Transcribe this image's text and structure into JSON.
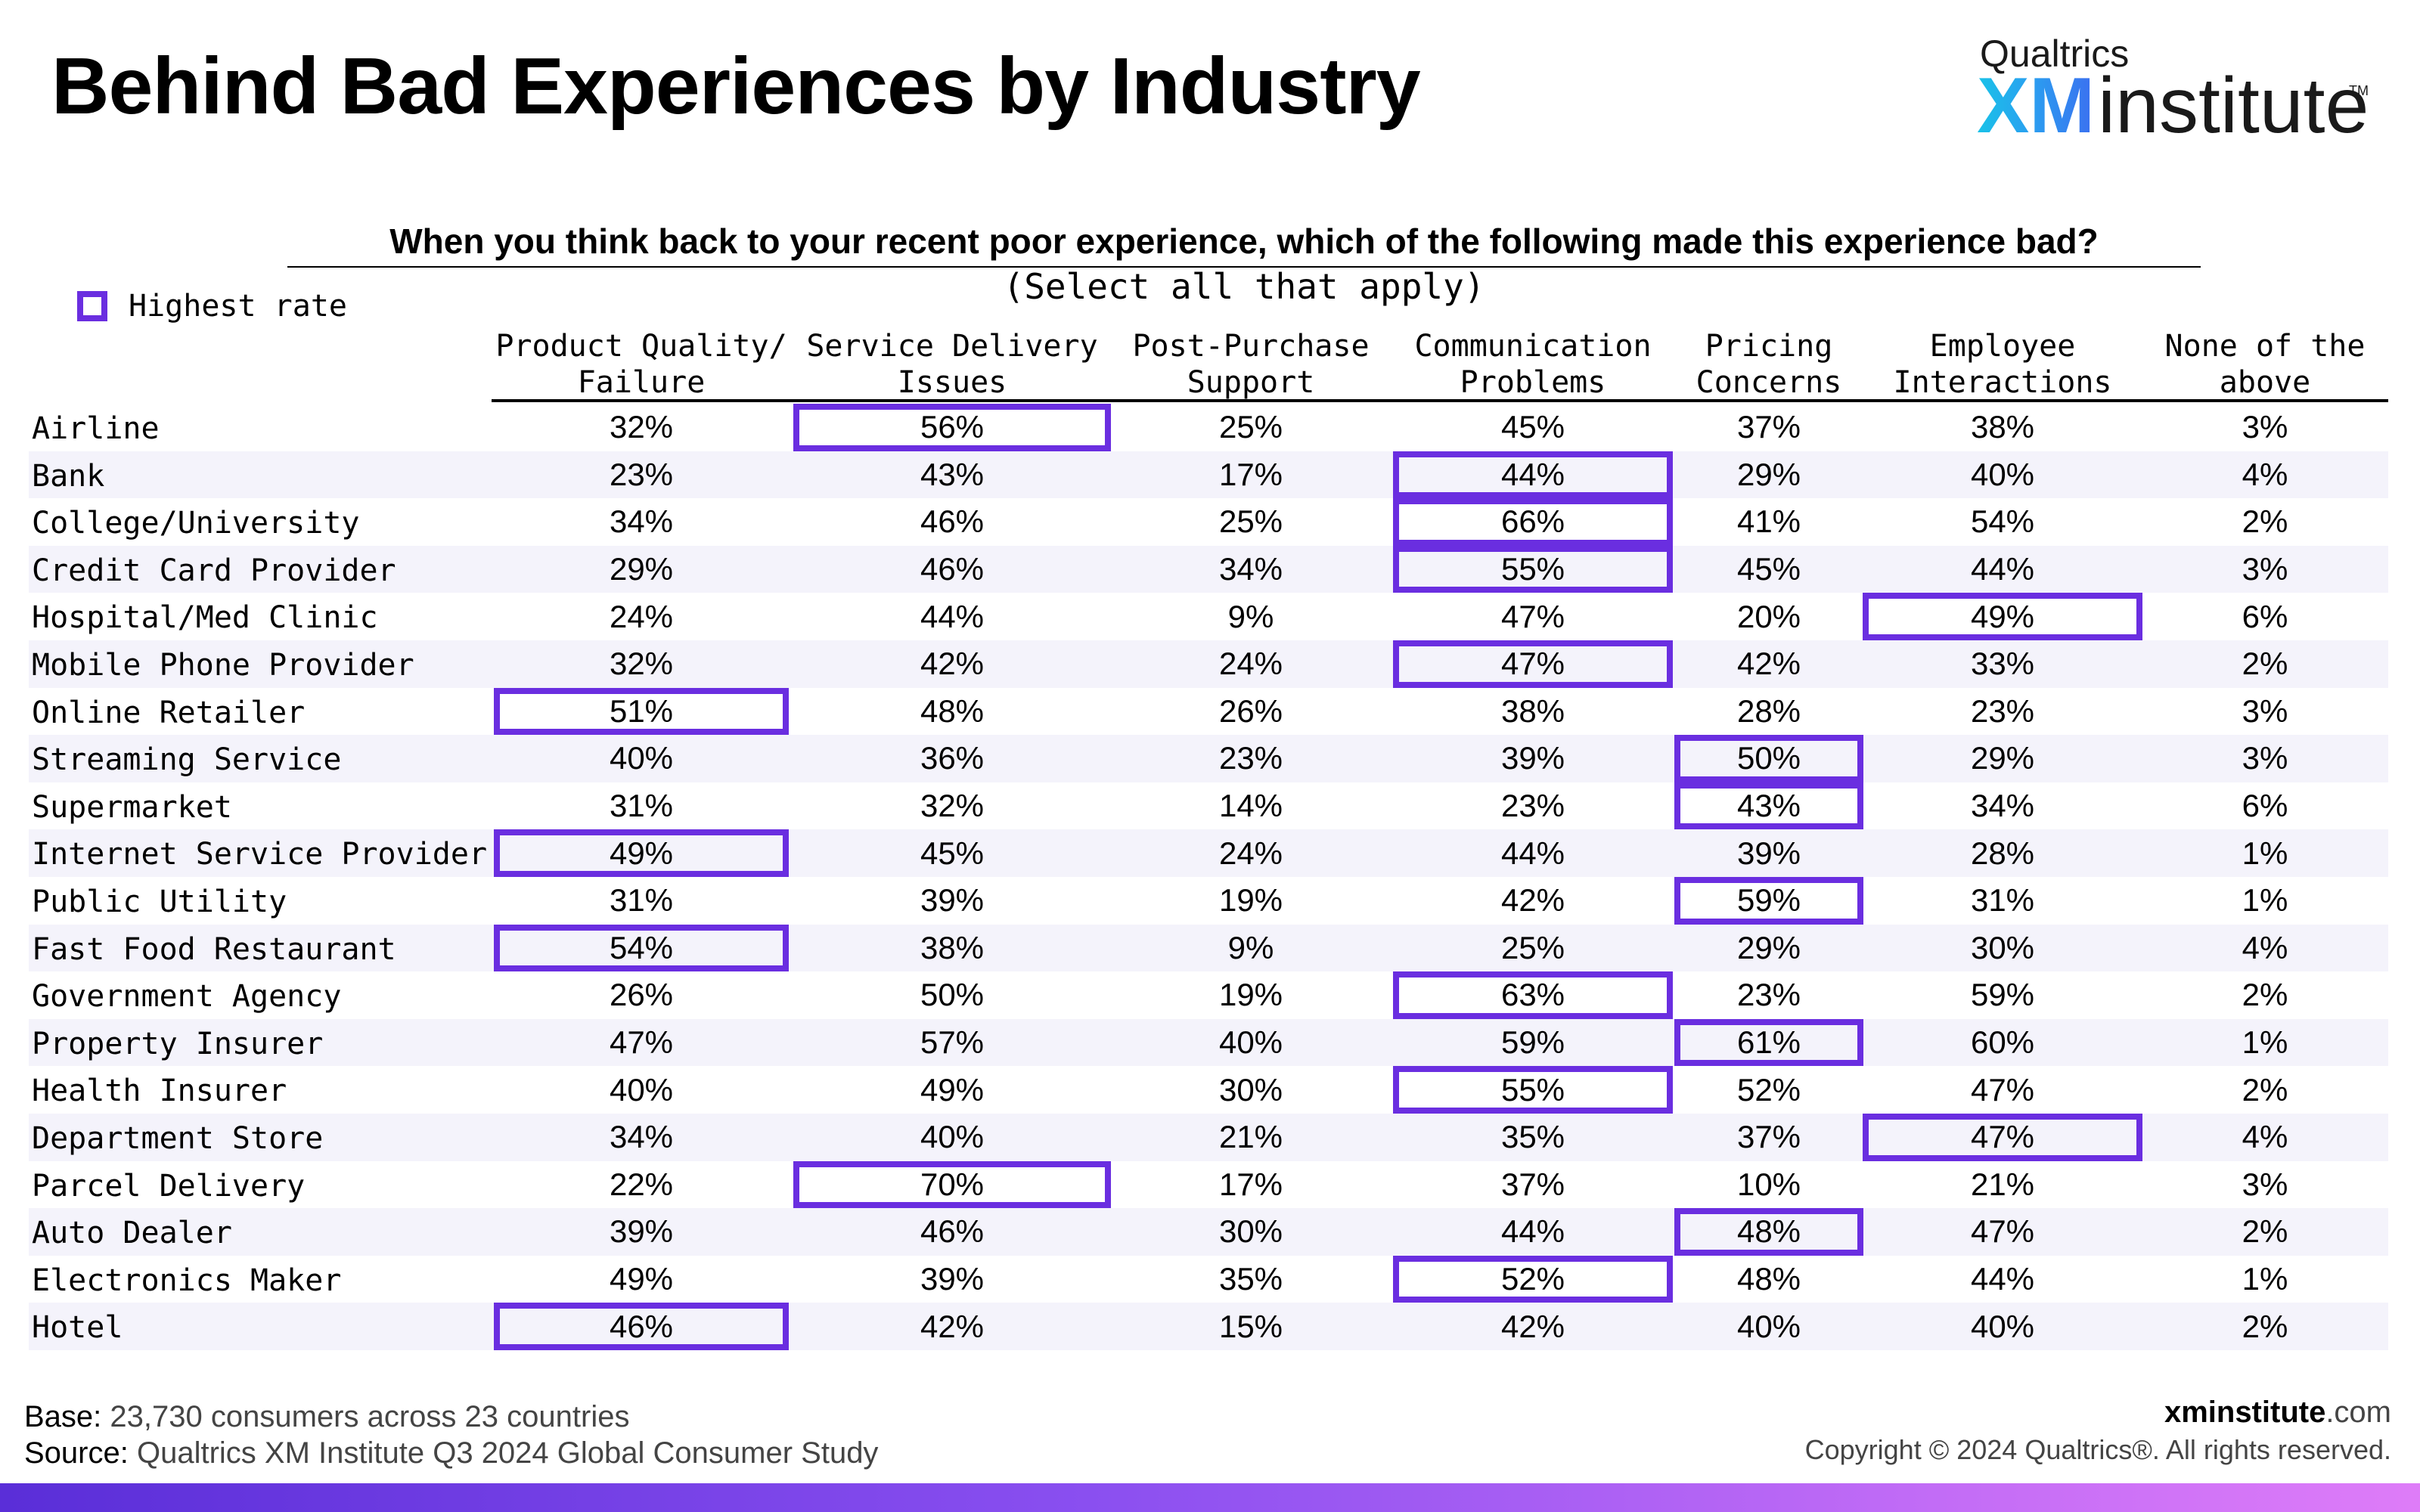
{
  "header": {
    "title": "Behind Bad Experiences by Industry",
    "logo": {
      "top": "Qualtrics",
      "xm": "XM",
      "institute": "institute",
      "tm": "TM"
    }
  },
  "question": "When you think back to your recent poor experience, which of the following made this experience bad?",
  "instruction": "(Select all that apply)",
  "legend": {
    "label": "Highest rate",
    "color": "#6a2ee0"
  },
  "colors": {
    "highlight": "#6a2ee0",
    "row_shade": "#f4f3fb"
  },
  "chart_data": {
    "type": "table",
    "title": "Behind Bad Experiences by Industry",
    "columns": [
      {
        "line1": "Product Quality/",
        "line2": "Failure"
      },
      {
        "line1": "Service Delivery",
        "line2": "Issues"
      },
      {
        "line1": "Post-Purchase",
        "line2": "Support"
      },
      {
        "line1": "Communication",
        "line2": "Problems"
      },
      {
        "line1": "Pricing",
        "line2": "Concerns"
      },
      {
        "line1": "Employee",
        "line2": "Interactions"
      },
      {
        "line1": "None of the",
        "line2": "above"
      }
    ],
    "rows": [
      {
        "label": "Airline",
        "values": [
          "32%",
          "56%",
          "25%",
          "45%",
          "37%",
          "38%",
          "3%"
        ],
        "highest": [
          1
        ]
      },
      {
        "label": "Bank",
        "values": [
          "23%",
          "43%",
          "17%",
          "44%",
          "29%",
          "40%",
          "4%"
        ],
        "highest": [
          3
        ]
      },
      {
        "label": "College/University",
        "values": [
          "34%",
          "46%",
          "25%",
          "66%",
          "41%",
          "54%",
          "2%"
        ],
        "highest": [
          3
        ]
      },
      {
        "label": "Credit Card Provider",
        "values": [
          "29%",
          "46%",
          "34%",
          "55%",
          "45%",
          "44%",
          "3%"
        ],
        "highest": [
          3
        ]
      },
      {
        "label": "Hospital/Med Clinic",
        "values": [
          "24%",
          "44%",
          "9%",
          "47%",
          "20%",
          "49%",
          "6%"
        ],
        "highest": [
          5
        ]
      },
      {
        "label": "Mobile Phone Provider",
        "values": [
          "32%",
          "42%",
          "24%",
          "47%",
          "42%",
          "33%",
          "2%"
        ],
        "highest": [
          3
        ]
      },
      {
        "label": "Online Retailer",
        "values": [
          "51%",
          "48%",
          "26%",
          "38%",
          "28%",
          "23%",
          "3%"
        ],
        "highest": [
          0
        ]
      },
      {
        "label": "Streaming Service",
        "values": [
          "40%",
          "36%",
          "23%",
          "39%",
          "50%",
          "29%",
          "3%"
        ],
        "highest": [
          4
        ]
      },
      {
        "label": "Supermarket",
        "values": [
          "31%",
          "32%",
          "14%",
          "23%",
          "43%",
          "34%",
          "6%"
        ],
        "highest": [
          4
        ]
      },
      {
        "label": "Internet Service Provider",
        "values": [
          "49%",
          "45%",
          "24%",
          "44%",
          "39%",
          "28%",
          "1%"
        ],
        "highest": [
          0
        ]
      },
      {
        "label": "Public Utility",
        "values": [
          "31%",
          "39%",
          "19%",
          "42%",
          "59%",
          "31%",
          "1%"
        ],
        "highest": [
          4
        ]
      },
      {
        "label": "Fast Food Restaurant",
        "values": [
          "54%",
          "38%",
          "9%",
          "25%",
          "29%",
          "30%",
          "4%"
        ],
        "highest": [
          0
        ]
      },
      {
        "label": "Government Agency",
        "values": [
          "26%",
          "50%",
          "19%",
          "63%",
          "23%",
          "59%",
          "2%"
        ],
        "highest": [
          3
        ]
      },
      {
        "label": "Property Insurer",
        "values": [
          "47%",
          "57%",
          "40%",
          "59%",
          "61%",
          "60%",
          "1%"
        ],
        "highest": [
          4
        ]
      },
      {
        "label": "Health Insurer",
        "values": [
          "40%",
          "49%",
          "30%",
          "55%",
          "52%",
          "47%",
          "2%"
        ],
        "highest": [
          3
        ]
      },
      {
        "label": "Department Store",
        "values": [
          "34%",
          "40%",
          "21%",
          "35%",
          "37%",
          "47%",
          "4%"
        ],
        "highest": [
          5
        ]
      },
      {
        "label": "Parcel Delivery",
        "values": [
          "22%",
          "70%",
          "17%",
          "37%",
          "10%",
          "21%",
          "3%"
        ],
        "highest": [
          1
        ]
      },
      {
        "label": "Auto Dealer",
        "values": [
          "39%",
          "46%",
          "30%",
          "44%",
          "48%",
          "47%",
          "2%"
        ],
        "highest": [
          4
        ]
      },
      {
        "label": "Electronics Maker",
        "values": [
          "49%",
          "39%",
          "35%",
          "52%",
          "48%",
          "44%",
          "1%"
        ],
        "highest": [
          3
        ]
      },
      {
        "label": "Hotel",
        "values": [
          "46%",
          "42%",
          "15%",
          "42%",
          "40%",
          "40%",
          "2%"
        ],
        "highest": [
          0
        ]
      }
    ]
  },
  "footer": {
    "base_label": "Base:",
    "base_text": "23,730 consumers across 23 countries",
    "source_label": "Source:",
    "source_text": "Qualtrics XM Institute Q3 2024 Global Consumer Study",
    "site_bold": "xminstitute",
    "site_tld": ".com",
    "copyright": "Copyright © 2024 Qualtrics®. All rights reserved."
  }
}
